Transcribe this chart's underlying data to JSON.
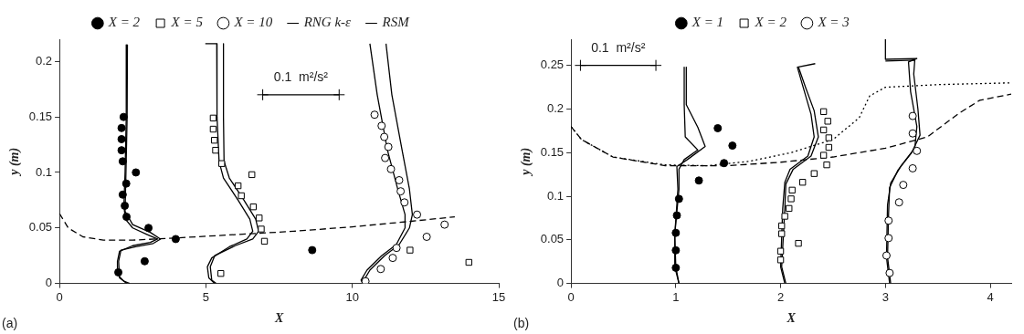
{
  "chart_data": [
    {
      "type": "scatter",
      "xlabel": "X",
      "ylabel": "y (m)",
      "xlim": [
        0,
        15
      ],
      "xticks": [
        0,
        5,
        10,
        15
      ],
      "ylim": [
        0,
        0.22
      ],
      "yticks": [
        0,
        0.05,
        0.1,
        0.15,
        0.2
      ],
      "grid": false,
      "legend": "top",
      "annotations": [
        "(a)",
        "0.1  m²/s²"
      ],
      "series": [
        {
          "name": "X = 2",
          "type": "scatter",
          "marker": "circle",
          "color": "#000000",
          "x": [
            2.19,
            2.12,
            2.12,
            2.12,
            2.16,
            2.61,
            2.28,
            2.16,
            2.23,
            2.29,
            3.04,
            3.97,
            2.91,
            2.01,
            8.63
          ],
          "values": [
            0.15,
            0.14,
            0.13,
            0.12,
            0.11,
            0.1,
            0.09,
            0.08,
            0.07,
            0.06,
            0.05,
            0.04,
            0.02,
            0.01,
            0.03
          ]
        },
        {
          "name": "X = 5",
          "type": "scatter",
          "marker": "square",
          "color": "#ffffff",
          "x": [
            5.25,
            5.25,
            5.29,
            5.33,
            5.54,
            6.57,
            6.1,
            6.21,
            6.62,
            6.82,
            6.89,
            7.0,
            11.97,
            13.98,
            5.51
          ],
          "values": [
            0.149,
            0.139,
            0.129,
            0.12,
            0.108,
            0.098,
            0.088,
            0.079,
            0.069,
            0.059,
            0.049,
            0.038,
            0.03,
            0.019,
            0.009
          ]
        },
        {
          "name": "X = 10",
          "type": "scatter",
          "marker": "circle",
          "color": "#ffffff",
          "x": [
            10.76,
            11.0,
            11.09,
            11.23,
            11.12,
            11.32,
            11.6,
            11.65,
            11.78,
            12.21,
            13.15,
            12.54,
            11.51,
            11.38,
            10.97,
            10.45
          ],
          "values": [
            0.152,
            0.142,
            0.132,
            0.123,
            0.113,
            0.103,
            0.093,
            0.083,
            0.073,
            0.062,
            0.053,
            0.042,
            0.032,
            0.023,
            0.013,
            0.002
          ]
        },
        {
          "name": "RNG k-ε",
          "type": "line",
          "color": "#000000",
          "x": [
            2.32,
            2.31,
            2.27,
            2.24,
            2.5,
            3.1,
            3.45,
            3.2,
            2.6,
            2.1,
            2.02,
            2.05,
            2.3
          ],
          "values": [
            0.215,
            0.15,
            0.1,
            0.065,
            0.053,
            0.046,
            0.04,
            0.036,
            0.033,
            0.03,
            0.02,
            0.005,
            0
          ]
        },
        {
          "name": "RSM",
          "type": "line",
          "color": "#000000",
          "x": [
            2.29,
            2.28,
            2.24,
            2.2,
            2.25,
            2.5,
            3.0,
            3.35,
            3.1,
            2.5,
            2.05,
            1.98,
            1.98,
            2.2,
            2.4
          ],
          "values": [
            0.215,
            0.15,
            0.1,
            0.07,
            0.058,
            0.05,
            0.044,
            0.04,
            0.037,
            0.034,
            0.029,
            0.02,
            0.008,
            0.002,
            0
          ]
        },
        {
          "type": "line",
          "color": "#000000",
          "x": [
            5.6,
            5.6,
            5.62,
            5.8,
            6.3,
            6.7,
            6.8,
            6.6,
            6.0,
            5.3,
            5.15,
            5.2,
            5.35
          ],
          "values": [
            0.216,
            0.15,
            0.11,
            0.095,
            0.075,
            0.058,
            0.047,
            0.04,
            0.034,
            0.025,
            0.015,
            0.003,
            0
          ]
        },
        {
          "type": "line",
          "color": "#000000",
          "x": [
            4.98,
            5.37,
            5.38,
            5.45,
            5.6,
            6.1,
            6.5,
            6.6,
            6.4,
            5.8,
            5.2,
            5.05,
            5.1,
            5.3
          ],
          "values": [
            0.216,
            0.216,
            0.15,
            0.11,
            0.095,
            0.075,
            0.058,
            0.047,
            0.04,
            0.033,
            0.023,
            0.015,
            0.005,
            0
          ]
        },
        {
          "type": "line",
          "color": "#000000",
          "x": [
            11.15,
            11.35,
            11.7,
            11.95,
            12.05,
            11.95,
            11.6,
            11.1,
            10.6,
            10.4,
            10.45
          ],
          "values": [
            0.216,
            0.17,
            0.12,
            0.085,
            0.062,
            0.05,
            0.035,
            0.025,
            0.012,
            0.003,
            0
          ]
        },
        {
          "type": "line",
          "color": "#000000",
          "x": [
            10.6,
            10.85,
            11.2,
            11.55,
            11.8,
            11.8,
            11.5,
            11.0,
            10.5,
            10.3,
            10.35
          ],
          "values": [
            0.216,
            0.17,
            0.12,
            0.085,
            0.062,
            0.05,
            0.035,
            0.025,
            0.012,
            0.003,
            0
          ]
        },
        {
          "type": "line",
          "line_style": "dashed",
          "color": "#000000",
          "x": [
            0,
            0.3,
            0.8,
            1.5,
            2.5,
            4,
            6,
            8,
            10,
            12,
            13.5
          ],
          "values": [
            0.063,
            0.05,
            0.042,
            0.039,
            0.039,
            0.041,
            0.044,
            0.047,
            0.051,
            0.056,
            0.06
          ]
        },
        {
          "type": "line",
          "marker": "cross",
          "color": "#000000",
          "x": [
            6.94,
            9.55
          ],
          "values": [
            0.17,
            0.17
          ]
        }
      ]
    },
    {
      "type": "scatter",
      "xlabel": "X",
      "ylabel": "y (m)",
      "xlim": [
        0,
        4.2
      ],
      "xticks": [
        0,
        1,
        2,
        3,
        4
      ],
      "ylim": [
        0,
        0.28
      ],
      "yticks": [
        0,
        0.05,
        0.1,
        0.15,
        0.2,
        0.25
      ],
      "grid": false,
      "legend": "top",
      "annotations": [
        "(b)",
        "0.1  m²/s²"
      ],
      "series": [
        {
          "name": "X = 1",
          "type": "scatter",
          "marker": "circle",
          "color": "#000000",
          "x": [
            1.03,
            1.01,
            1.0,
            1.0,
            1.0,
            1.22,
            1.46,
            1.54,
            1.4
          ],
          "values": [
            0.097,
            0.078,
            0.058,
            0.038,
            0.018,
            0.118,
            0.138,
            0.158,
            0.178
          ]
        },
        {
          "name": "X = 2",
          "type": "scatter",
          "marker": "square",
          "color": "#ffffff",
          "x": [
            2.41,
            2.45,
            2.41,
            2.46,
            2.46,
            2.41,
            2.44,
            2.32,
            2.21,
            2.11,
            2.1,
            2.08,
            2.04,
            2.01,
            2.01,
            2.0,
            2.0,
            2.17
          ],
          "values": [
            0.197,
            0.186,
            0.176,
            0.167,
            0.156,
            0.147,
            0.136,
            0.126,
            0.116,
            0.107,
            0.097,
            0.086,
            0.077,
            0.066,
            0.057,
            0.037,
            0.027,
            0.046
          ]
        },
        {
          "name": "X = 3",
          "type": "scatter",
          "marker": "circle",
          "color": "#ffffff",
          "x": [
            3.26,
            3.26,
            3.3,
            3.26,
            3.17,
            3.13,
            3.03,
            3.03,
            3.01,
            3.04
          ],
          "values": [
            0.192,
            0.172,
            0.152,
            0.132,
            0.113,
            0.093,
            0.072,
            0.052,
            0.032,
            0.012
          ]
        },
        {
          "type": "line",
          "color": "#000000",
          "x": [
            1.08,
            1.08,
            1.09,
            1.21,
            1.08,
            1.03,
            1.03,
            0.99,
            1.0,
            1.03
          ],
          "values": [
            0.248,
            0.205,
            0.168,
            0.153,
            0.142,
            0.131,
            0.108,
            0.056,
            0.019,
            0
          ]
        },
        {
          "type": "line",
          "color": "#000000",
          "x": [
            1.1,
            1.1,
            1.21,
            1.28,
            1.11,
            1.01,
            1.02,
            0.99,
            0.99,
            1.03
          ],
          "values": [
            0.248,
            0.205,
            0.179,
            0.157,
            0.142,
            0.134,
            0.108,
            0.056,
            0.019,
            0
          ]
        },
        {
          "type": "line",
          "color": "#000000",
          "x": [
            2.17,
            2.24,
            2.32,
            2.36,
            2.29,
            2.12,
            2.05,
            2.04,
            2.01,
            2.05
          ],
          "values": [
            0.248,
            0.224,
            0.198,
            0.168,
            0.146,
            0.131,
            0.114,
            0.086,
            0.019,
            0
          ]
        },
        {
          "type": "line",
          "color": "#000000",
          "x": [
            2.33,
            2.16,
            2.21,
            2.29,
            2.32,
            2.26,
            2.09,
            2.04,
            2.02,
            2.0,
            2.04
          ],
          "values": [
            0.252,
            0.248,
            0.227,
            0.194,
            0.168,
            0.146,
            0.131,
            0.116,
            0.086,
            0.019,
            0
          ]
        },
        {
          "type": "line",
          "color": "#000000",
          "x": [
            3.0,
            3.28,
            3.27,
            3.31,
            3.33,
            3.25,
            3.12,
            3.04,
            3.03,
            3.02,
            3.05
          ],
          "values": [
            0.255,
            0.256,
            0.24,
            0.2,
            0.17,
            0.15,
            0.13,
            0.11,
            0.08,
            0.03,
            0
          ]
        },
        {
          "type": "line",
          "color": "#000000",
          "x": [
            3.0,
            3.0,
            3.3,
            3.22,
            3.24,
            3.3,
            3.28,
            3.15,
            3.05,
            3.02,
            3.01,
            3.04
          ],
          "values": [
            0.28,
            0.257,
            0.258,
            0.254,
            0.22,
            0.18,
            0.155,
            0.135,
            0.115,
            0.09,
            0.03,
            0
          ]
        },
        {
          "type": "line",
          "line_style": "dotted",
          "color": "#000000",
          "x": [
            0,
            0.1,
            0.4,
            0.9,
            1.3,
            1.7,
            2.1,
            2.5,
            2.75,
            2.85,
            3.0,
            3.5,
            4.2
          ],
          "values": [
            0.18,
            0.165,
            0.145,
            0.136,
            0.135,
            0.14,
            0.15,
            0.165,
            0.19,
            0.215,
            0.225,
            0.228,
            0.23
          ]
        },
        {
          "type": "line",
          "line_style": "dashed",
          "color": "#000000",
          "x": [
            0,
            0.1,
            0.4,
            0.9,
            1.5,
            2.0,
            2.5,
            3.0,
            3.4,
            3.7,
            3.9,
            4.2
          ],
          "values": [
            0.18,
            0.165,
            0.145,
            0.135,
            0.135,
            0.139,
            0.145,
            0.155,
            0.168,
            0.195,
            0.21,
            0.217
          ]
        },
        {
          "type": "line",
          "marker": "cross",
          "color": "#000000",
          "x": [
            0.09,
            0.81
          ],
          "values": [
            0.25,
            0.25
          ]
        }
      ]
    }
  ]
}
